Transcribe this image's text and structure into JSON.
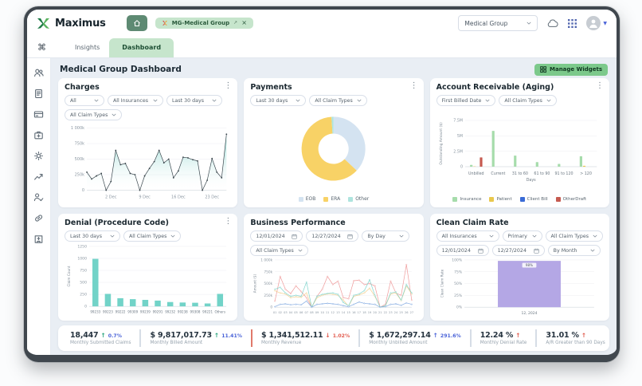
{
  "topbar": {
    "brand": "Maximus",
    "tab_label": "MG-Medical Group",
    "org_select": "Medical Group"
  },
  "nav": {
    "insights": "Insights",
    "dashboard": "Dashboard"
  },
  "page": {
    "title": "Medical Group Dashboard",
    "manage_widgets_label": "Manage Widgets"
  },
  "sidebar": {
    "icons": [
      "users",
      "document",
      "credit-card",
      "briefcase",
      "settings",
      "trending-up",
      "user-check",
      "link",
      "hospital"
    ]
  },
  "widgets": {
    "charges": {
      "title": "Charges",
      "filters": [
        "All",
        "All Insurances",
        "Last 30 days",
        "All Claim Types"
      ]
    },
    "payments": {
      "title": "Payments",
      "filters": [
        "Last 30 days",
        "All Claim Types"
      ]
    },
    "ar_aging": {
      "title": "Account Receivable (Aging)",
      "filters": [
        "First Billed Date",
        "All Claim Types"
      ]
    },
    "denial": {
      "title": "Denial (Procedure Code)",
      "filters": [
        "Last 30 days",
        "All Claim Types"
      ]
    },
    "business_performance": {
      "title": "Business Performance",
      "date_from": "12/01/2024",
      "date_to": "12/27/2024",
      "filters": [
        "By Day",
        "All Claim Types"
      ]
    },
    "clean_claim_rate": {
      "title": "Clean Claim Rate",
      "date_from": "12/01/2024",
      "date_to": "12/27/2024",
      "filters": [
        "All Insurances",
        "Primary",
        "All Claim Types",
        "By Month"
      ]
    }
  },
  "chart_data": [
    {
      "id": "charges",
      "type": "area",
      "title": "Charges",
      "values": [
        290,
        180,
        230,
        270,
        0,
        140,
        640,
        410,
        430,
        270,
        250,
        0,
        230,
        350,
        460,
        640,
        440,
        500,
        200,
        310,
        530,
        520,
        490,
        470,
        0,
        160,
        510,
        290,
        200,
        900
      ],
      "unit": "k",
      "ylim": [
        0,
        1000
      ],
      "y_ticks": [
        "0",
        "250k",
        "500k",
        "750k",
        "1 000k"
      ],
      "x_ticks": [
        "2 Dec",
        "9 Dec",
        "16 Dec",
        "23 Dec"
      ],
      "tick_indices": [
        5,
        12,
        19,
        26
      ],
      "line_color": "#3a474e",
      "fill_color": "#7fd2ca"
    },
    {
      "id": "payments",
      "type": "donut",
      "title": "Payments",
      "labels": [
        "EOB",
        "ERA",
        "Other"
      ],
      "values": [
        37,
        62,
        1
      ],
      "colors": [
        "#d4e3f1",
        "#f8d266",
        "#aee4de"
      ]
    },
    {
      "id": "ar_aging",
      "type": "grouped_bar",
      "title": "Account Receivable (Aging)",
      "categories": [
        "Unbilled",
        "Current",
        "31 to 60",
        "61 to 90",
        "91 to 120",
        "> 120"
      ],
      "series": [
        {
          "name": "Insurance",
          "color": "#a6dcab",
          "values": [
            0.3,
            5.8,
            1.8,
            0.75,
            0.45,
            1.7
          ]
        },
        {
          "name": "Patient",
          "color": "#e9c84d",
          "values": [
            0.05,
            0,
            0,
            0,
            0,
            0.15
          ]
        },
        {
          "name": "Client Bill",
          "color": "#3a6bd6",
          "values": [
            0,
            0,
            0,
            0,
            0,
            0
          ]
        },
        {
          "name": "OtherDraft",
          "color": "#c65a50",
          "values": [
            1.5,
            0,
            0,
            0,
            0,
            0
          ]
        }
      ],
      "xlabel": "Days",
      "ylabel": "Outstanding Amount ($)",
      "y_ticks": [
        "0",
        "2.5M",
        "5M",
        "7.5M"
      ],
      "ylim": [
        0,
        7.5
      ]
    },
    {
      "id": "denial",
      "type": "bar",
      "title": "Denial (Procedure Code)",
      "categories": [
        "99233",
        "99223",
        "99222",
        "99309",
        "99239",
        "99291",
        "99232",
        "99238",
        "99308",
        "99221",
        "Others"
      ],
      "values": [
        990,
        260,
        170,
        150,
        135,
        120,
        90,
        80,
        75,
        60,
        260
      ],
      "ylabel": "Claim Count",
      "y_ticks": [
        "0",
        "250",
        "500",
        "750",
        "1000",
        "1250"
      ],
      "ylim": [
        0,
        1250
      ],
      "color": "#72d3c8"
    },
    {
      "id": "business_performance",
      "type": "line",
      "title": "Business Performance",
      "x": [
        "01",
        "02",
        "03",
        "04",
        "05",
        "06",
        "07",
        "08",
        "09",
        "10",
        "11",
        "12",
        "13",
        "14",
        "15",
        "16",
        "17",
        "18",
        "19",
        "20",
        "21",
        "22",
        "23",
        "24",
        "25",
        "26",
        "27"
      ],
      "series": [
        {
          "name": "series-red",
          "color": "#ef9a9a",
          "values": [
            130,
            650,
            380,
            290,
            450,
            330,
            200,
            0,
            230,
            380,
            650,
            480,
            550,
            200,
            180,
            560,
            570,
            480,
            500,
            450,
            0,
            60,
            550,
            300,
            250,
            900,
            150
          ]
        },
        {
          "name": "series-orange",
          "color": "#f3cf8e",
          "values": [
            350,
            300,
            280,
            200,
            220,
            210,
            300,
            0,
            200,
            250,
            280,
            270,
            250,
            150,
            20,
            230,
            260,
            300,
            400,
            230,
            0,
            20,
            280,
            300,
            140,
            450,
            280
          ]
        },
        {
          "name": "series-teal",
          "color": "#7fd4cc",
          "values": [
            380,
            420,
            300,
            230,
            250,
            230,
            530,
            0,
            230,
            270,
            290,
            300,
            270,
            100,
            30,
            250,
            280,
            350,
            580,
            250,
            0,
            30,
            300,
            320,
            150,
            480,
            300
          ]
        },
        {
          "name": "series-blue",
          "color": "#7fa8e0",
          "values": [
            10,
            60,
            70,
            50,
            60,
            50,
            130,
            0,
            60,
            70,
            80,
            70,
            60,
            30,
            10,
            60,
            110,
            80,
            70,
            60,
            0,
            10,
            60,
            70,
            40,
            90,
            60
          ]
        }
      ],
      "ylabel": "Amount ($)",
      "y_ticks": [
        "0",
        "250k",
        "500k",
        "750k",
        "1 000k"
      ],
      "ylim": [
        0,
        1000
      ]
    },
    {
      "id": "clean_claim_rate",
      "type": "bar",
      "title": "Clean Claim Rate",
      "categories": [
        "12, 2024"
      ],
      "values": [
        98
      ],
      "bar_label": "98%",
      "ylabel": "Clean Claim Rate",
      "y_ticks": [
        "0%",
        "25%",
        "50%",
        "75%",
        "100%"
      ],
      "ylim": [
        0,
        100
      ],
      "color": "#b4a7e5"
    }
  ],
  "stats": [
    {
      "value": "18,447",
      "arrow": "↑",
      "delta": "0.7%",
      "label": "Monthly Submitted Claims"
    },
    {
      "value": "$ 9,817,017.73",
      "arrow": "↑",
      "delta": "11.41%",
      "label": "Monthly Billed Amount"
    },
    {
      "value": "$ 1,341,512.11",
      "arrow": "↓",
      "delta": "1.02%",
      "label": "Monthly Revenue"
    },
    {
      "value": "$ 1,672,297.14",
      "arrow": "↑",
      "delta": "291.6%",
      "label": "Monthly Unbilled Amount"
    },
    {
      "value": "12.24 %",
      "arrow": "↑",
      "delta": "",
      "label": "Monthly Denial Rate"
    },
    {
      "value": "31.01 %",
      "arrow": "↑",
      "delta": "",
      "label": "A/R Greater than 90 Days"
    }
  ],
  "colors": {
    "accent_green": "#7cc98b",
    "tab_green": "#c6e5cc",
    "home_button_green": "#5e8a73",
    "content_bg": "#e9eef4",
    "positive": "#2aa57d",
    "negative": "#e25c4f",
    "delta_blue": "#4a63d8"
  }
}
